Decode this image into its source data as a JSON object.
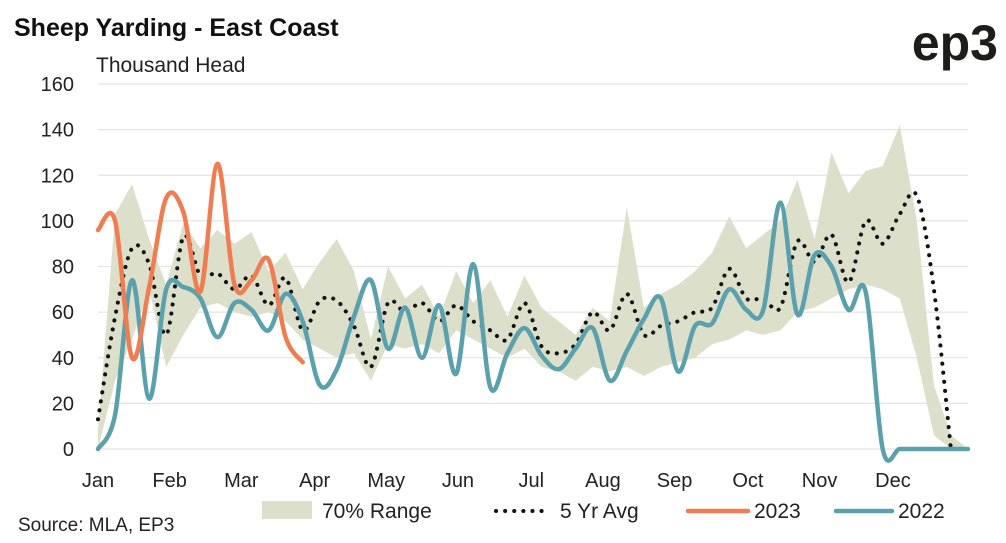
{
  "chart_data": {
    "type": "line",
    "title": "Sheep Yarding - East Coast",
    "ylabel": "Thousand Head",
    "source": "Source: MLA, EP3",
    "logo": "ep3",
    "ylim": [
      0,
      160
    ],
    "yticks": [
      0,
      20,
      40,
      60,
      80,
      100,
      120,
      140,
      160
    ],
    "xlim": [
      1,
      52
    ],
    "xticks": [
      {
        "label": "Jan",
        "week": 1
      },
      {
        "label": "Feb",
        "week": 5.2
      },
      {
        "label": "Mar",
        "week": 9.4
      },
      {
        "label": "Apr",
        "week": 13.7
      },
      {
        "label": "May",
        "week": 17.9
      },
      {
        "label": "Jun",
        "week": 22.1
      },
      {
        "label": "Jul",
        "week": 26.4
      },
      {
        "label": "Aug",
        "week": 30.6
      },
      {
        "label": "Sep",
        "week": 34.8
      },
      {
        "label": "Oct",
        "week": 39.1
      },
      {
        "label": "Nov",
        "week": 43.3
      },
      {
        "label": "Dec",
        "week": 47.6
      }
    ],
    "grid": true,
    "legend_position": "bottom",
    "range": {
      "name": "70% Range",
      "color": "#dcdfca",
      "weeks": [
        1,
        2,
        3,
        4,
        5,
        6,
        7,
        8,
        9,
        10,
        11,
        12,
        13,
        14,
        15,
        16,
        17,
        18,
        19,
        20,
        21,
        22,
        23,
        24,
        25,
        26,
        27,
        28,
        29,
        30,
        31,
        32,
        33,
        34,
        35,
        36,
        37,
        38,
        39,
        40,
        41,
        42,
        43,
        44,
        45,
        46,
        47,
        48,
        49,
        50,
        51,
        52
      ],
      "upper": [
        8,
        103,
        116,
        92,
        72,
        99,
        88,
        96,
        90,
        95,
        78,
        86,
        70,
        82,
        92,
        78,
        48,
        80,
        66,
        72,
        58,
        78,
        64,
        74,
        58,
        76,
        62,
        56,
        50,
        62,
        56,
        106,
        62,
        68,
        72,
        78,
        86,
        102,
        88,
        94,
        100,
        118,
        92,
        130,
        112,
        122,
        124,
        142,
        100,
        28,
        6,
        0
      ],
      "lower": [
        0,
        30,
        48,
        70,
        36,
        50,
        62,
        64,
        60,
        58,
        60,
        56,
        48,
        44,
        40,
        42,
        30,
        46,
        44,
        46,
        42,
        52,
        48,
        44,
        40,
        44,
        36,
        34,
        30,
        36,
        34,
        36,
        32,
        36,
        38,
        40,
        46,
        48,
        52,
        50,
        52,
        60,
        62,
        66,
        70,
        72,
        70,
        66,
        40,
        6,
        0,
        0
      ]
    },
    "series": [
      {
        "name": "5 Yr Avg",
        "color": "#111111",
        "style": "dotted",
        "weeks": [
          1,
          2,
          3,
          4,
          5,
          6,
          7,
          8,
          9,
          10,
          11,
          12,
          13,
          14,
          15,
          16,
          17,
          18,
          19,
          20,
          21,
          22,
          23,
          24,
          25,
          26,
          27,
          28,
          29,
          30,
          31,
          32,
          33,
          34,
          35,
          36,
          37,
          38,
          39,
          40,
          41,
          42,
          43,
          44,
          45,
          46,
          47,
          48,
          49,
          50,
          51
        ],
        "values": [
          13,
          58,
          88,
          81,
          50,
          93,
          76,
          77,
          70,
          76,
          63,
          75,
          52,
          65,
          65,
          54,
          36,
          64,
          60,
          64,
          56,
          63,
          56,
          52,
          48,
          64,
          45,
          42,
          46,
          60,
          52,
          68,
          50,
          54,
          56,
          60,
          62,
          79,
          66,
          66,
          62,
          91,
          82,
          94,
          73,
          100,
          90,
          103,
          111,
          70,
          0
        ]
      },
      {
        "name": "2023",
        "color": "#f07d52",
        "style": "solid",
        "weeks": [
          1,
          2,
          3,
          4,
          5,
          6,
          7,
          8,
          9,
          10,
          11,
          12,
          13
        ],
        "values": [
          96,
          100,
          40,
          71,
          110,
          104,
          69,
          125,
          72,
          74,
          83,
          49,
          38
        ]
      },
      {
        "name": "2022",
        "color": "#5ba1ad",
        "style": "solid",
        "weeks": [
          1,
          2,
          3,
          4,
          5,
          6,
          7,
          8,
          9,
          10,
          11,
          12,
          13,
          14,
          15,
          16,
          17,
          18,
          19,
          20,
          21,
          22,
          23,
          24,
          25,
          26,
          27,
          28,
          29,
          30,
          31,
          32,
          33,
          34,
          35,
          36,
          37,
          38,
          39,
          40,
          41,
          42,
          43,
          44,
          45,
          46,
          47,
          48,
          49,
          50,
          51,
          52
        ],
        "values": [
          0,
          15,
          74,
          22,
          70,
          71,
          66,
          49,
          64,
          61,
          52,
          68,
          56,
          28,
          35,
          58,
          74,
          44,
          62,
          40,
          63,
          33,
          81,
          27,
          42,
          53,
          41,
          35,
          44,
          53,
          30,
          43,
          57,
          66,
          34,
          54,
          55,
          70,
          61,
          61,
          108,
          59,
          85,
          80,
          61,
          69,
          0,
          0,
          0,
          0,
          0,
          0
        ]
      }
    ]
  }
}
